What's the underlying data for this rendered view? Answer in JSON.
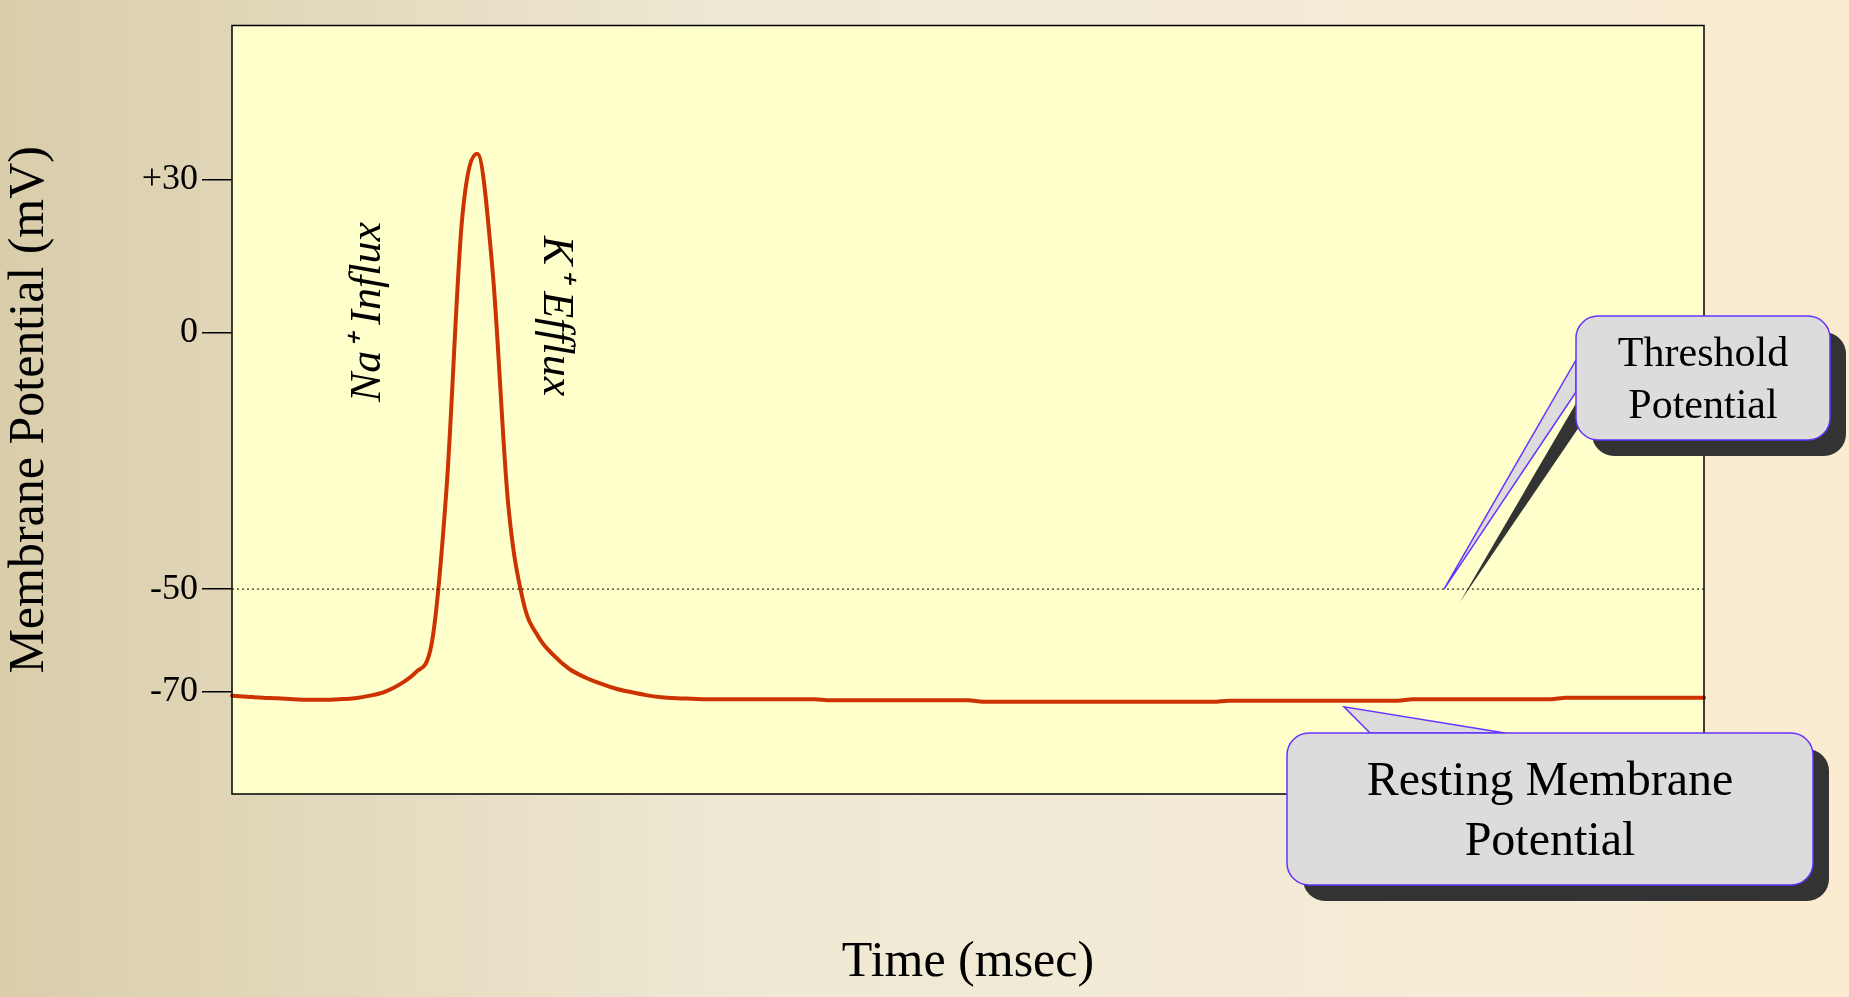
{
  "chart_data": {
    "type": "line",
    "xlabel": "Time (msec)",
    "ylabel": "Membrane Potential (mV)",
    "categories": [
      null,
      null,
      null,
      null,
      null,
      null,
      null,
      null,
      null,
      null,
      null,
      null,
      null,
      null,
      null,
      null,
      null,
      null,
      null,
      null,
      null,
      null,
      null,
      null,
      null,
      null,
      null,
      null,
      null,
      null,
      null,
      null,
      null,
      null,
      null,
      null,
      null,
      null,
      null,
      null,
      null,
      null,
      null,
      null,
      null,
      null,
      null,
      null,
      null,
      null,
      null,
      null,
      null,
      null,
      null,
      null,
      null,
      null,
      null,
      null,
      null,
      null,
      null,
      null,
      null,
      null,
      null,
      null,
      null,
      null,
      null,
      null,
      null,
      null,
      null,
      null,
      null,
      null,
      null,
      null,
      null,
      null,
      null,
      null,
      null,
      null,
      null,
      null,
      null,
      null,
      null,
      null,
      null,
      null,
      null,
      null,
      null
    ],
    "series": [
      {
        "color": "#cc3300",
        "values": [
          -70.8,
          -71,
          -71.2,
          -71.3,
          -71.5,
          -71.6,
          -71.6,
          -71.5,
          -71.3,
          -70.8,
          -70,
          -68.5,
          -66.2,
          -61,
          -30,
          22,
          35,
          12,
          -33,
          -52.5,
          -59.4,
          -63,
          -65.6,
          -67.2,
          -68.4,
          -69.4,
          -70.1,
          -70.7,
          -71.1,
          -71.3,
          -71.4,
          -71.5,
          -71.5,
          -71.5,
          -71.5,
          -71.5,
          -71.5,
          -71.5,
          -71.5,
          -71.7,
          -71.7,
          -71.7,
          -71.7,
          -71.7,
          -71.7,
          -71.7,
          -71.7,
          -71.7,
          -71.7,
          -72,
          -72,
          -72,
          -72,
          -72,
          -72,
          -72,
          -72,
          -72,
          -72,
          -72,
          -72,
          -72,
          -72,
          -72,
          -72,
          -71.8,
          -71.8,
          -71.8,
          -71.8,
          -71.8,
          -71.8,
          -71.8,
          -71.8,
          -71.8,
          -71.8,
          -71.8,
          -71.8,
          -71.5,
          -71.5,
          -71.5,
          -71.5,
          -71.5,
          -71.5,
          -71.5,
          -71.5,
          -71.5,
          -71.5,
          -71.2,
          -71.2,
          -71.2,
          -71.2,
          -71.2,
          -71.2,
          -71.2,
          -71.2,
          -71.2,
          -71.2
        ]
      }
    ],
    "ylim": [
      -90,
      60
    ],
    "yticks": [
      {
        "value": 30,
        "label": "+30"
      },
      0,
      -50,
      -70
    ],
    "tick_labels": "y",
    "grid": false,
    "legend": false,
    "marker": "none",
    "line_style": "solid",
    "ref_lines": [
      {
        "axis": "y",
        "value": -50,
        "color": "#000000",
        "line_style": "dotted"
      }
    ],
    "annotations": [
      "Na⁺ Influx",
      "K⁺ Efflux",
      "Threshold Potential",
      "Resting Membrane Potential"
    ]
  }
}
